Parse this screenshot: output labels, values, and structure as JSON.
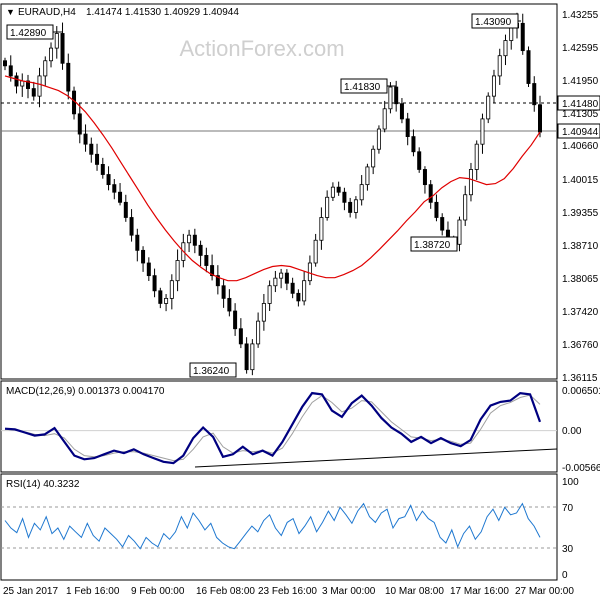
{
  "header": {
    "symbol": "EURAUD,H4",
    "ohlc": "1.41474 1.41530 1.40929 1.40944"
  },
  "watermark": "ActionForex.com",
  "colors": {
    "background": "#ffffff",
    "candle": "#000000",
    "sma": "#e00000",
    "macd_line": "#000080",
    "signal_line": "#a0a0a0",
    "rsi_line": "#1f78d0",
    "trendline": "#000000"
  },
  "chart_data": [
    {
      "type": "candlestick",
      "title": "EURAUD,H4",
      "y_axis_ticks": [
        "1.43255",
        "1.42595",
        "1.41950",
        "1.41305",
        "1.40660",
        "1.40015",
        "1.39355",
        "1.38710",
        "1.38065",
        "1.37420",
        "1.36760",
        "1.36115"
      ],
      "ylim": [
        1.36115,
        1.43255
      ],
      "x_ticks": [
        "25 Jan 2017",
        "1 Feb 16:00",
        "9 Feb 00:00",
        "16 Feb 08:00",
        "23 Feb 16:00",
        "3 Mar 00:00",
        "10 Mar 08:00",
        "17 Mar 16:00",
        "27 Mar 00:00"
      ],
      "price_markers": [
        "1.41480",
        "1.40944"
      ],
      "annotations": [
        "1.42890",
        "1.36240",
        "1.41830",
        "1.38720",
        "1.43090"
      ],
      "series": [
        {
          "name": "close",
          "values": [
            1.4225,
            1.4205,
            1.4185,
            1.4195,
            1.418,
            1.4165,
            1.4205,
            1.4235,
            1.426,
            1.4289,
            1.423,
            1.4175,
            1.413,
            1.409,
            1.407,
            1.405,
            1.403,
            1.401,
            1.399,
            1.3975,
            1.3955,
            1.3925,
            1.389,
            1.386,
            1.3835,
            1.381,
            1.378,
            1.3755,
            1.3765,
            1.38,
            1.384,
            1.3875,
            1.389,
            1.387,
            1.385,
            1.383,
            1.381,
            1.379,
            1.3765,
            1.374,
            1.3705,
            1.3675,
            1.3624,
            1.3675,
            1.372,
            1.3755,
            1.379,
            1.3805,
            1.3815,
            1.3795,
            1.3775,
            1.376,
            1.38,
            1.3835,
            1.388,
            1.3925,
            1.3965,
            1.3985,
            1.3975,
            1.3955,
            1.3935,
            1.396,
            1.399,
            1.4025,
            1.406,
            1.41,
            1.414,
            1.4183,
            1.415,
            1.412,
            1.4085,
            1.4055,
            1.402,
            1.399,
            1.3955,
            1.3925,
            1.39,
            1.388,
            1.3872,
            1.392,
            1.397,
            1.402,
            1.407,
            1.412,
            1.4165,
            1.4205,
            1.4245,
            1.4275,
            1.43,
            1.4309,
            1.4255,
            1.419,
            1.4148,
            1.4094
          ]
        },
        {
          "name": "SMA",
          "values": [
            1.4205,
            1.42,
            1.4195,
            1.4192,
            1.4188,
            1.4182,
            1.4176,
            1.4166,
            1.4152,
            1.4134,
            1.4112,
            1.4088,
            1.4062,
            1.4034,
            1.4006,
            1.3978,
            1.395,
            1.3924,
            1.39,
            1.3878,
            1.3858,
            1.384,
            1.3826,
            1.3814,
            1.3806,
            1.38,
            1.38,
            1.3806,
            1.3814,
            1.3822,
            1.3828,
            1.383,
            1.3828,
            1.3822,
            1.3816,
            1.381,
            1.3806,
            1.3806,
            1.3812,
            1.382,
            1.383,
            1.3845,
            1.3862,
            1.388,
            1.3898,
            1.3918,
            1.3936,
            1.3956,
            1.3968,
            1.3984,
            1.3996,
            1.4004,
            1.4002,
            1.3996,
            1.399,
            1.3992,
            1.4002,
            1.4022,
            1.4046,
            1.4068,
            1.4094
          ]
        }
      ]
    },
    {
      "type": "line",
      "title": "MACD(12,26,9) 0.001373 0.004170",
      "y_axis_ticks": [
        "0.006501",
        "0.00",
        "-0.005666"
      ],
      "ylim": [
        -0.005666,
        0.006501
      ],
      "series": [
        {
          "name": "MACD",
          "values": [
            0.0003,
            0.0002,
            -0.0003,
            -0.0008,
            -0.0006,
            0.0004,
            -0.0018,
            -0.004,
            -0.0046,
            -0.0044,
            -0.0038,
            -0.0032,
            -0.0036,
            -0.003,
            -0.0038,
            -0.0044,
            -0.005,
            -0.0052,
            -0.004,
            -0.0012,
            0.0005,
            -0.001,
            -0.0042,
            -0.0038,
            -0.0026,
            -0.0038,
            -0.0032,
            -0.004,
            -0.0018,
            0.001,
            0.0038,
            0.006,
            0.0058,
            0.0032,
            0.0022,
            0.0044,
            0.0056,
            0.004,
            0.002,
            0.0005,
            -0.0005,
            -0.0018,
            -0.001,
            -0.002,
            -0.0012,
            -0.002,
            -0.0025,
            -0.0015,
            0.0018,
            0.004,
            0.0046,
            0.0048,
            0.006,
            0.0058,
            0.0014
          ]
        },
        {
          "name": "Signal",
          "values": [
            0.0002,
            0.0001,
            -0.0002,
            -0.0006,
            -0.0008,
            -0.0005,
            -0.0012,
            -0.003,
            -0.004,
            -0.0042,
            -0.004,
            -0.0036,
            -0.0034,
            -0.0034,
            -0.0036,
            -0.004,
            -0.0044,
            -0.0048,
            -0.0046,
            -0.003,
            -0.001,
            -0.0004,
            -0.0026,
            -0.0036,
            -0.0032,
            -0.0034,
            -0.0032,
            -0.0036,
            -0.0028,
            -0.0005,
            0.0022,
            0.0045,
            0.0056,
            0.0045,
            0.003,
            0.0036,
            0.0048,
            0.0046,
            0.003,
            0.0014,
            0.0002,
            -0.001,
            -0.0012,
            -0.0016,
            -0.0014,
            -0.0017,
            -0.0022,
            -0.002,
            0.0002,
            0.0028,
            0.004,
            0.0045,
            0.0053,
            0.0057,
            0.0042
          ]
        }
      ]
    },
    {
      "type": "line",
      "title": "RSI(14) 40.3232",
      "y_axis_ticks": [
        "100",
        "70",
        "30",
        "0"
      ],
      "ylim": [
        0,
        100
      ],
      "series": [
        {
          "name": "RSI",
          "values": [
            58,
            50,
            45,
            60,
            40,
            55,
            48,
            62,
            44,
            50,
            38,
            52,
            46,
            40,
            55,
            42,
            36,
            50,
            44,
            38,
            30,
            42,
            36,
            28,
            40,
            34,
            30,
            44,
            38,
            46,
            62,
            50,
            66,
            58,
            48,
            55,
            40,
            34,
            30,
            28,
            36,
            44,
            52,
            46,
            58,
            64,
            50,
            42,
            56,
            60,
            44,
            52,
            62,
            46,
            56,
            68,
            58,
            72,
            64,
            55,
            68,
            76,
            62,
            56,
            66,
            70,
            50,
            60,
            62,
            74,
            58,
            68,
            60,
            56,
            40,
            34,
            48,
            30,
            44,
            52,
            38,
            46,
            62,
            70,
            58,
            72,
            64,
            66,
            76,
            60,
            52,
            40
          ]
        }
      ]
    }
  ]
}
